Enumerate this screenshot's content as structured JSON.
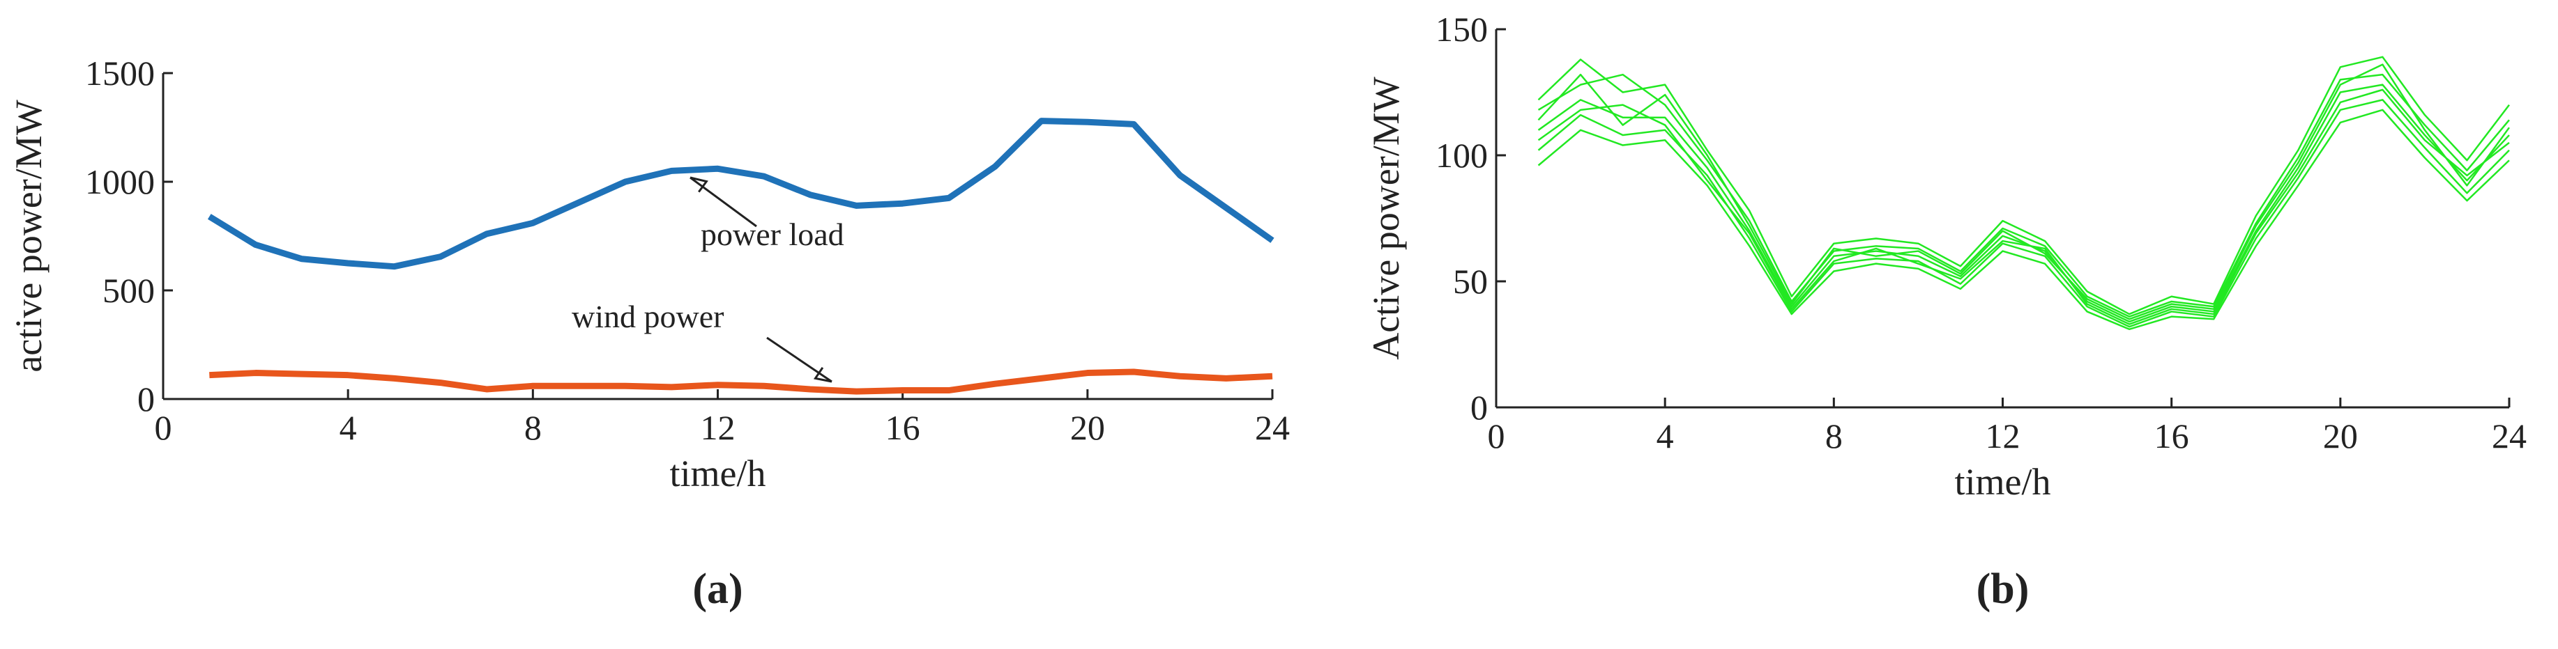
{
  "chart_data": [
    {
      "type": "line",
      "caption": "(a)",
      "xlabel": "time/h",
      "ylabel": "active power/MW",
      "x": [
        1,
        2,
        3,
        4,
        5,
        6,
        7,
        8,
        9,
        10,
        11,
        12,
        13,
        14,
        15,
        16,
        17,
        18,
        19,
        20,
        21,
        22,
        23,
        24
      ],
      "xlim": [
        0,
        24
      ],
      "xticks": [
        0,
        4,
        8,
        12,
        16,
        20,
        24
      ],
      "ylim": [
        0,
        1500
      ],
      "yticks": [
        0,
        500,
        1000,
        1500
      ],
      "annotations": [
        "power load",
        "wind power"
      ],
      "series": [
        {
          "color": "#1f72b8",
          "values": [
            840,
            710,
            645,
            625,
            610,
            655,
            760,
            810,
            905,
            1000,
            1050,
            1060,
            1025,
            940,
            890,
            900,
            925,
            1070,
            1280,
            1275,
            1265,
            1030,
            880,
            730
          ]
        },
        {
          "color": "#e8561c",
          "values": [
            110,
            120,
            115,
            110,
            95,
            75,
            45,
            60,
            60,
            60,
            55,
            65,
            60,
            45,
            35,
            40,
            40,
            70,
            95,
            120,
            125,
            105,
            95,
            105
          ]
        }
      ]
    },
    {
      "type": "line",
      "caption": "(b)",
      "xlabel": "time/h",
      "ylabel": "Active power/MW",
      "x": [
        1,
        2,
        3,
        4,
        5,
        6,
        7,
        8,
        9,
        10,
        11,
        12,
        13,
        14,
        15,
        16,
        17,
        18,
        19,
        20,
        21,
        22,
        23,
        24
      ],
      "xlim": [
        0,
        24
      ],
      "xticks": [
        0,
        4,
        8,
        12,
        16,
        20,
        24
      ],
      "ylim": [
        0,
        150
      ],
      "yticks": [
        0,
        50,
        100,
        150
      ],
      "series": [
        {
          "color": "#22e822",
          "values": [
            110,
            122,
            115,
            115,
            95,
            70,
            40,
            60,
            62,
            60,
            52,
            68,
            62,
            42,
            34,
            40,
            38,
            70,
            95,
            125,
            128,
            108,
            90,
            108
          ]
        },
        {
          "color": "#22e822",
          "values": [
            122,
            138,
            125,
            128,
            102,
            78,
            44,
            65,
            67,
            65,
            56,
            74,
            66,
            46,
            37,
            44,
            41,
            76,
            102,
            135,
            139,
            116,
            98,
            120
          ]
        },
        {
          "color": "#22e822",
          "values": [
            96,
            110,
            104,
            106,
            88,
            64,
            37,
            54,
            57,
            55,
            47,
            62,
            57,
            38,
            31,
            36,
            35,
            64,
            88,
            113,
            118,
            99,
            82,
            98
          ]
        },
        {
          "color": "#22e822",
          "values": [
            118,
            128,
            132,
            120,
            98,
            74,
            42,
            62,
            64,
            63,
            54,
            71,
            64,
            44,
            36,
            42,
            40,
            73,
            99,
            130,
            132,
            112,
            94,
            114
          ]
        },
        {
          "color": "#22e822",
          "values": [
            102,
            116,
            108,
            110,
            92,
            67,
            38,
            57,
            59,
            58,
            49,
            65,
            60,
            40,
            32,
            38,
            36,
            67,
            91,
            118,
            122,
            103,
            85,
            102
          ]
        },
        {
          "color": "#22e822",
          "values": [
            114,
            132,
            112,
            124,
            100,
            72,
            41,
            63,
            60,
            62,
            53,
            70,
            61,
            43,
            35,
            41,
            39,
            72,
            97,
            128,
            136,
            110,
            88,
            111
          ]
        },
        {
          "color": "#22e822",
          "values": [
            106,
            118,
            120,
            112,
            90,
            69,
            39,
            58,
            63,
            57,
            51,
            66,
            63,
            41,
            33,
            39,
            37,
            69,
            93,
            121,
            126,
            106,
            92,
            105
          ]
        }
      ]
    }
  ]
}
